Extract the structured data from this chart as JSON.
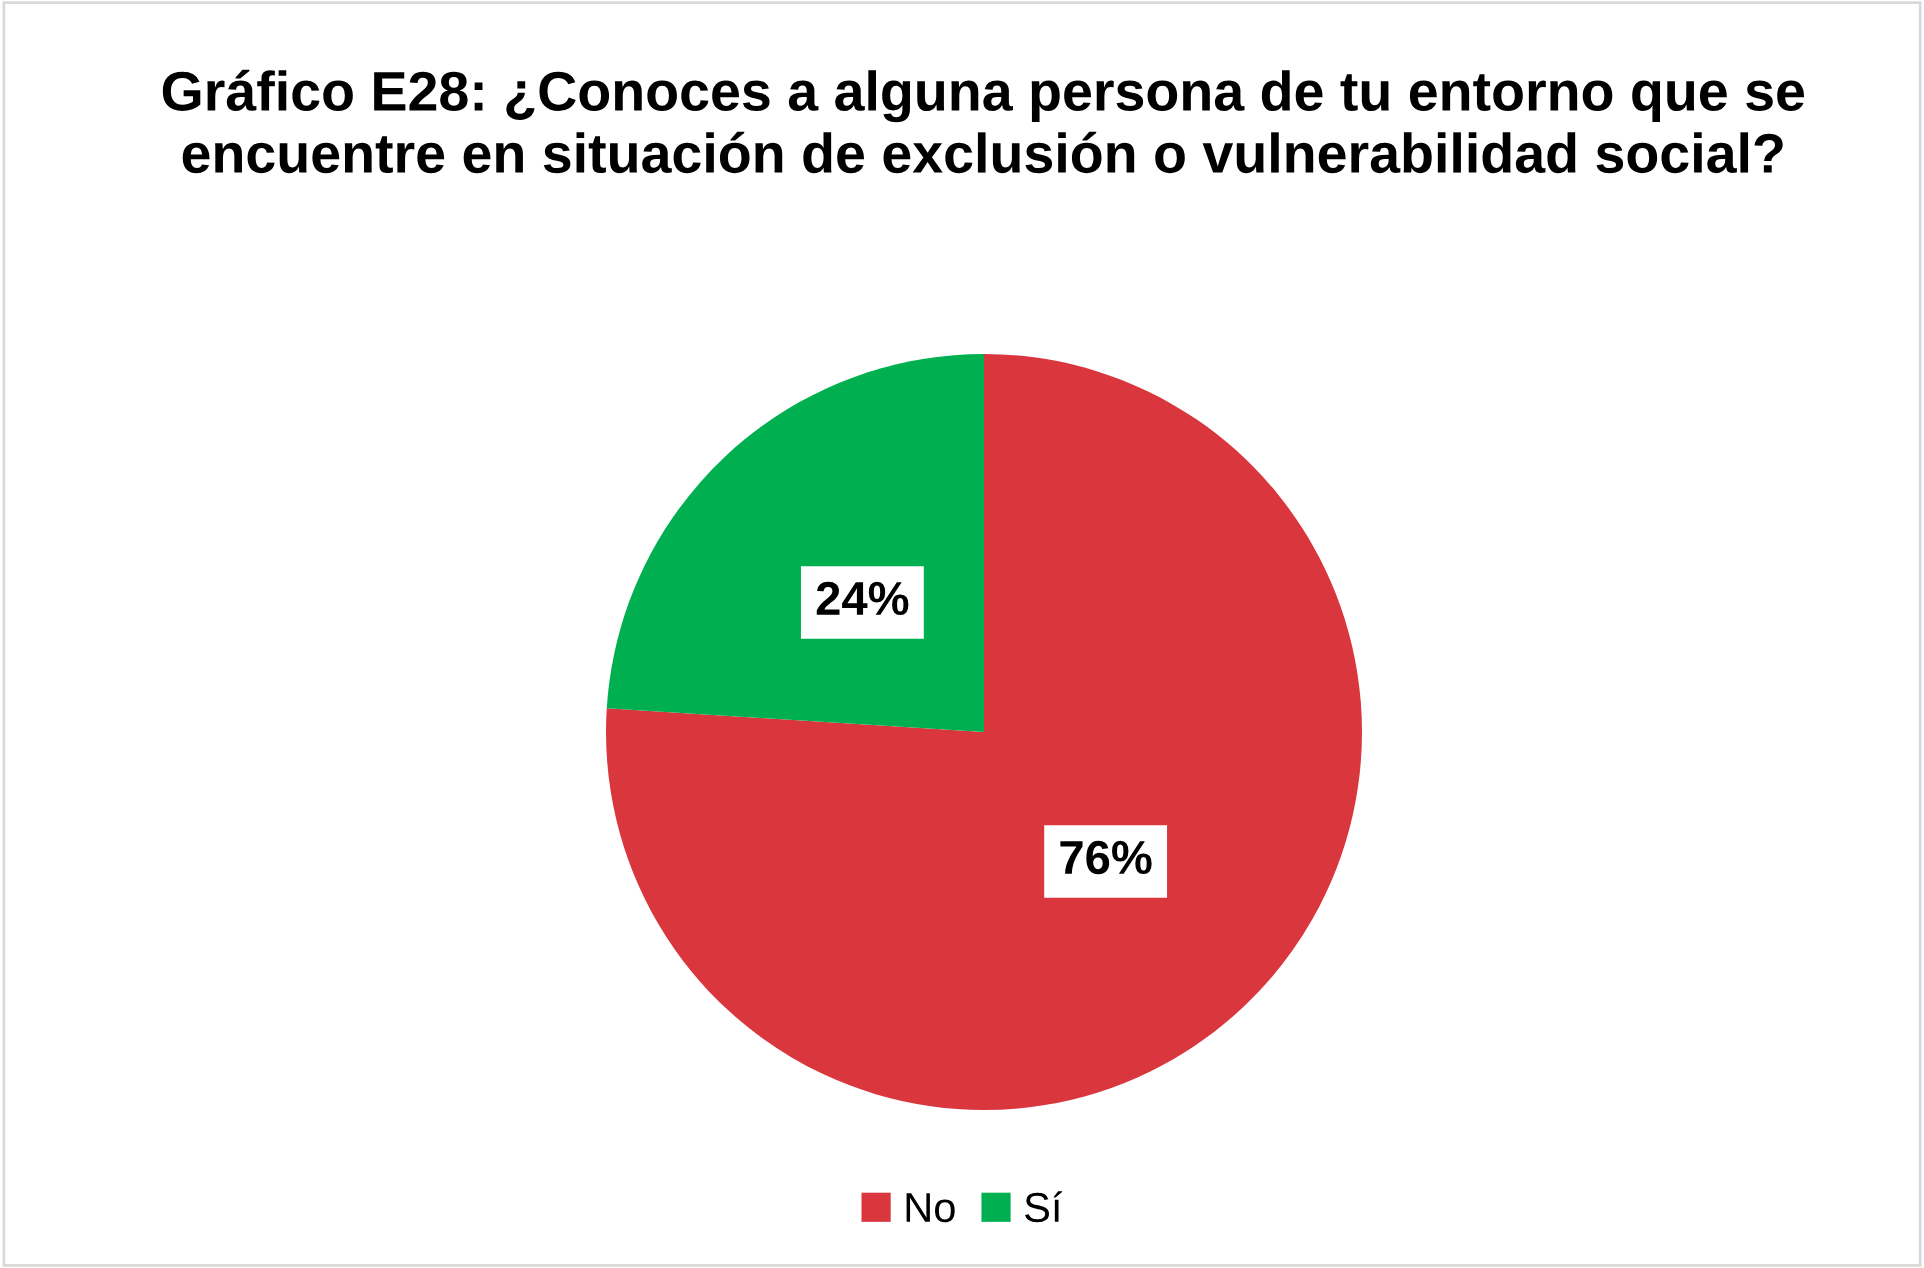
{
  "chart_data": {
    "type": "pie",
    "title": "Gráfico E28: ¿Conoces a alguna persona de tu entorno que se encuentre en situación de exclusión o vulnerabilidad social?",
    "categories": [
      "No",
      "Sí"
    ],
    "values": [
      76,
      24
    ],
    "colors": [
      "#d9363e",
      "#00b050"
    ],
    "value_labels": [
      "76%",
      "24%"
    ],
    "legend": "bottom"
  }
}
